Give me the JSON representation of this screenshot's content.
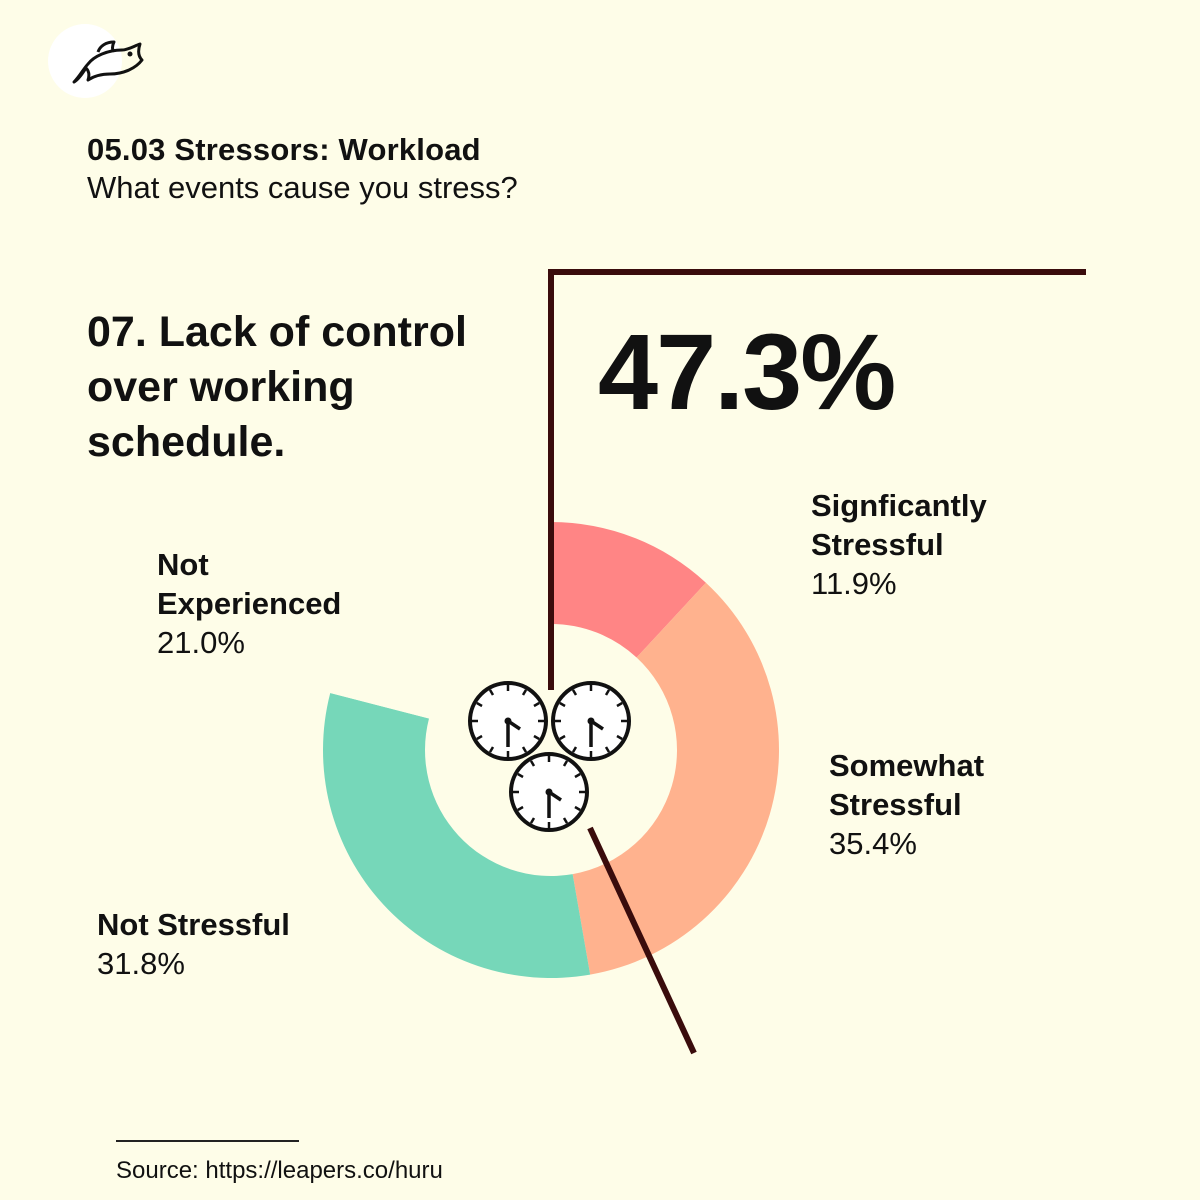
{
  "logo": {
    "icon": "fish-icon"
  },
  "header": {
    "section_title": "05.03 Stressors: Workload",
    "question": "What events cause you stress?"
  },
  "item_title": "07. Lack of control over working schedule.",
  "headline_value": "47.3%",
  "center_icon": "clocks-icon",
  "colors": {
    "background": "#fefde8",
    "significantly": "#ff8585",
    "somewhat": "#ffb28e",
    "not_stressful": "#76d7b9",
    "not_experienced": "#fefde8",
    "callout_line": "#3a0c0c"
  },
  "chart_data": {
    "type": "pie",
    "style": "donut",
    "categories": [
      "Signficantly Stressful",
      "Somewhat Stressful",
      "Not Stressful",
      "Not Experienced"
    ],
    "values": [
      11.9,
      35.4,
      31.8,
      21.0
    ],
    "labels": [
      {
        "name": "Signficantly Stressful",
        "value": "11.9%"
      },
      {
        "name": "Somewhat Stressful",
        "value": "35.4%"
      },
      {
        "name": "Not Stressful",
        "value": "31.8%"
      },
      {
        "name": "Not Experienced",
        "value": "21.0%"
      }
    ]
  },
  "footer": {
    "source": "Source: https://leapers.co/huru"
  }
}
